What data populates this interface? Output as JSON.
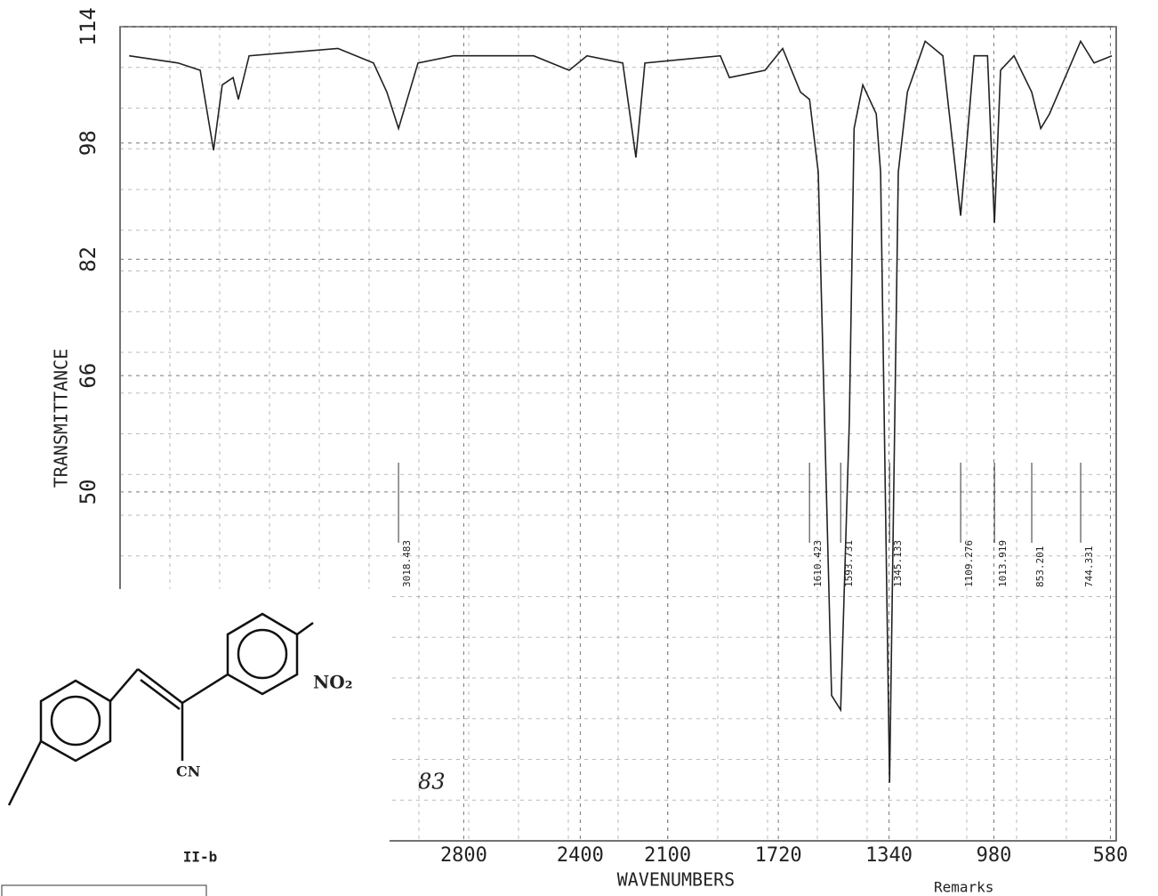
{
  "chart_data": {
    "type": "line",
    "y_label": "TRANSMITTANCE",
    "x_label": "WAVENUMBERS",
    "xlim": [
      3980,
      560
    ],
    "ylim": [
      2,
      114
    ],
    "xticks": [
      2800,
      2400,
      2100,
      1720,
      1340,
      980,
      580
    ],
    "yticks": [
      50,
      66,
      82,
      98,
      114
    ],
    "grid": true,
    "series": [
      {
        "color": "#222222",
        "x": [
          3949,
          3781,
          3705,
          3659,
          3629,
          3592,
          3574,
          3537,
          3232,
          3110,
          3064,
          3024,
          2957,
          2835,
          2713,
          2560,
          2438,
          2377,
          2254,
          2209,
          2178,
          1919,
          1888,
          1766,
          1705,
          1644,
          1613,
          1583,
          1537,
          1506,
          1476,
          1460,
          1430,
          1384,
          1369,
          1338,
          1308,
          1277,
          1216,
          1155,
          1094,
          1048,
          1002,
          978,
          957,
          911,
          850,
          819,
          789,
          682,
          636,
          575
        ],
        "values": [
          110,
          109,
          108,
          97,
          106,
          107,
          104,
          110,
          111,
          109,
          105,
          100,
          109,
          110,
          110,
          110,
          108,
          110,
          109,
          96,
          109,
          110,
          107,
          108,
          111,
          105,
          104,
          94,
          22,
          20,
          60,
          100,
          106,
          102,
          94,
          10,
          94,
          105,
          112,
          110,
          88,
          110,
          110,
          87,
          108,
          110,
          105,
          100,
          102,
          112,
          109,
          110
        ]
      }
    ],
    "annotations": [
      {
        "text": "3018.483",
        "x": 3024
      },
      {
        "text": "1610.423",
        "x": 1613
      },
      {
        "text": "1593.731",
        "x": 1506
      },
      {
        "text": "1345.133",
        "x": 1338
      },
      {
        "text": "1109.276",
        "x": 1094
      },
      {
        "text": "1013.919",
        "x": 978
      },
      {
        "text": "853.201",
        "x": 850
      },
      {
        "text": "744.331",
        "x": 682
      }
    ],
    "compound": {
      "label": "II-b",
      "group1": "NO₂",
      "group2": "CN"
    },
    "handwritten": "83",
    "remarks": "Remarks"
  }
}
